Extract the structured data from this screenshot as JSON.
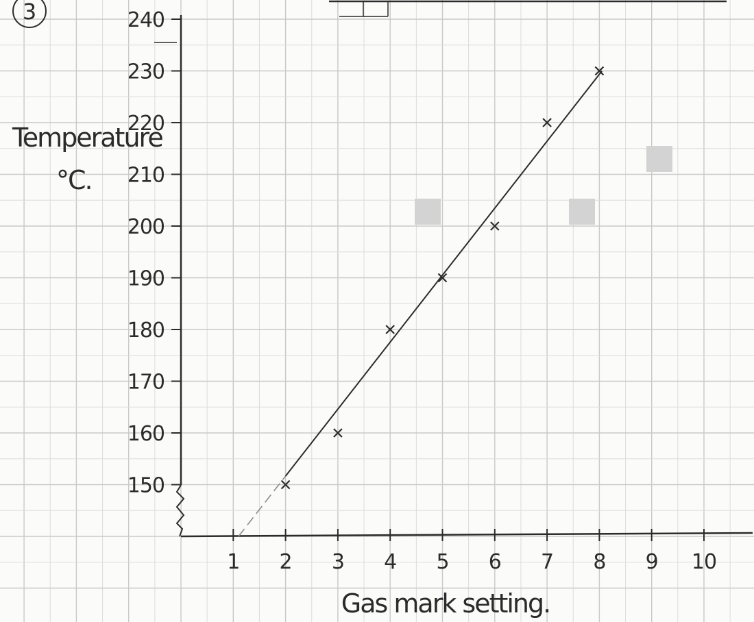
{
  "question_number": "3",
  "colors": {
    "paper": "#fbfbfa",
    "grid_major": "#c9c9c9",
    "grid_minor": "#dcdcdc",
    "ink": "#2b2b2b",
    "shaded_square": "#d3d3d3"
  },
  "chart_data": {
    "type": "scatter",
    "xlabel": "Gas mark setting.",
    "ylabel_line1": "Temperature",
    "ylabel_line2": "°C.",
    "x_ticks": [
      1,
      2,
      3,
      4,
      5,
      6,
      7,
      8,
      9,
      10
    ],
    "y_ticks": [
      150,
      160,
      170,
      180,
      190,
      200,
      210,
      220,
      230,
      240
    ],
    "xlim": [
      0,
      11
    ],
    "ylim": [
      140,
      240
    ],
    "y_axis_break": true,
    "grid": true,
    "series": [
      {
        "points": [
          {
            "x": 2,
            "y": 150
          },
          {
            "x": 3,
            "y": 160
          },
          {
            "x": 4,
            "y": 180
          },
          {
            "x": 5,
            "y": 190
          },
          {
            "x": 6,
            "y": 200
          },
          {
            "x": 7,
            "y": 220
          },
          {
            "x": 8,
            "y": 230
          }
        ]
      }
    ],
    "best_fit_line": {
      "from": {
        "x": 1.1,
        "y": 140
      },
      "to": {
        "x": 8.05,
        "y": 230
      },
      "dashed_below_x": 2
    }
  }
}
